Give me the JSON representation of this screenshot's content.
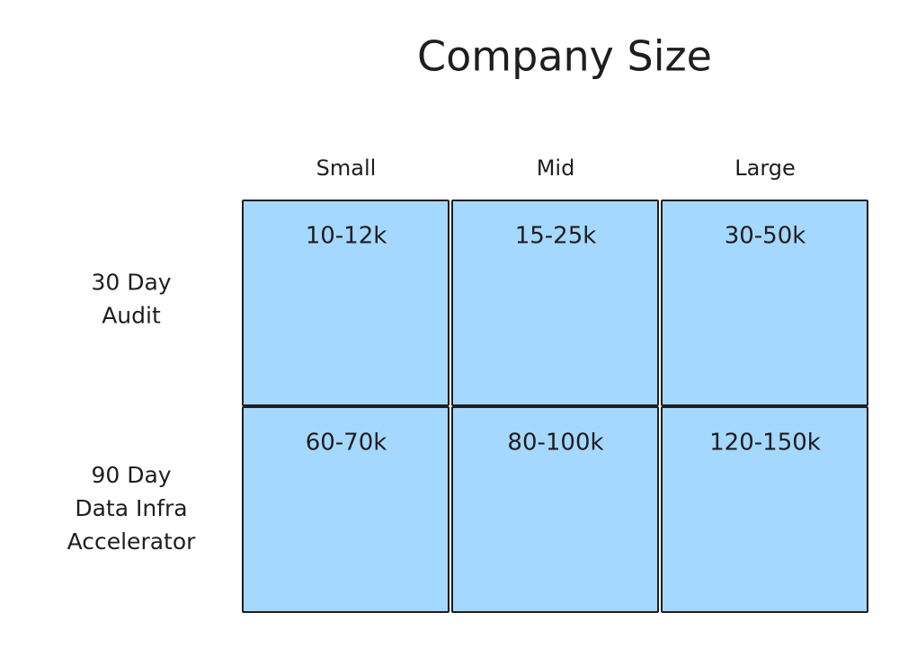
{
  "title": "Company Size",
  "columns": [
    "Small",
    "Mid",
    "Large"
  ],
  "rows": [
    {
      "label_lines": [
        "30 Day",
        "Audit"
      ],
      "cells": [
        "10-12k",
        "15-25k",
        "30-50k"
      ]
    },
    {
      "label_lines": [
        "90 Day",
        "Data Infra",
        "Accelerator"
      ],
      "cells": [
        "60-70k",
        "80-100k",
        "120-150k"
      ]
    }
  ]
}
